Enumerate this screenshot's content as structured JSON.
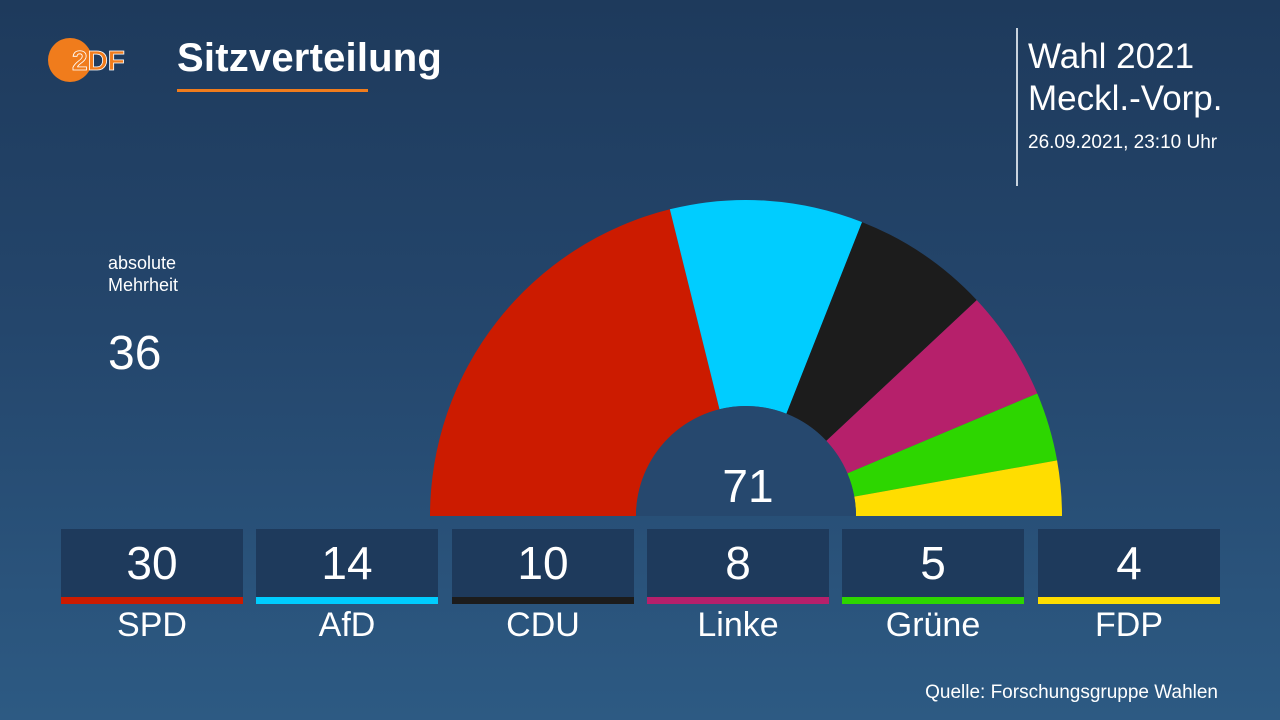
{
  "header": {
    "logo_text": "2DF",
    "title": "Sitzverteilung",
    "election_line1": "Wahl 2021",
    "election_line2": "Meckl.-Vorp.",
    "timestamp": "26.09.2021, 23:10 Uhr"
  },
  "majority": {
    "label_line1": "absolute",
    "label_line2": "Mehrheit",
    "value": "36"
  },
  "total_seats": "71",
  "source": "Quelle: Forschungsgruppe Wahlen",
  "colors": {
    "accent": "#f07c1c",
    "box_background": "#1e3a5c"
  },
  "chart_data": {
    "type": "pie",
    "shape": "semicircle",
    "title": "Sitzverteilung",
    "total": 71,
    "categories": [
      "SPD",
      "AfD",
      "CDU",
      "Linke",
      "Grüne",
      "FDP"
    ],
    "values": [
      30,
      14,
      10,
      8,
      5,
      4
    ],
    "colors": [
      "#cc1b00",
      "#00cdff",
      "#1c1c1c",
      "#b6206b",
      "#2dd600",
      "#ffdd00"
    ],
    "labels": [
      "30",
      "14",
      "10",
      "8",
      "5",
      "4"
    ]
  }
}
